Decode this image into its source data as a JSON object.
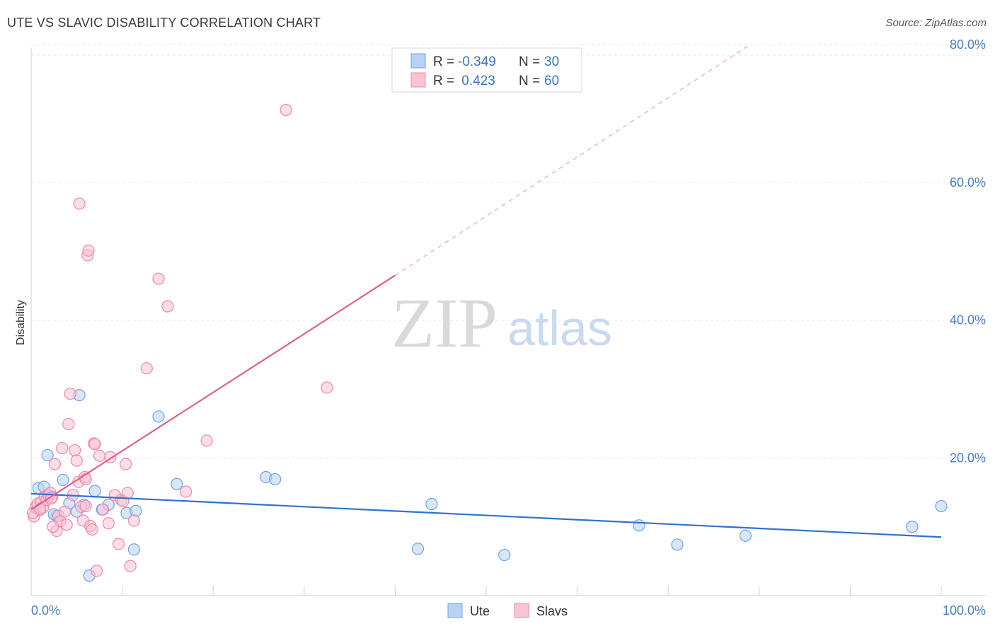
{
  "title": "UTE VS SLAVIC DISABILITY CORRELATION CHART",
  "source": "Source: ZipAtlas.com",
  "chart_data": {
    "type": "scatter",
    "ylabel": "Disability",
    "xlabel": "",
    "xlim": [
      0,
      100
    ],
    "ylim": [
      0,
      80
    ],
    "x_tick_labels": [
      "0.0%",
      "100.0%"
    ],
    "y_tick_labels": [
      "20.0%",
      "40.0%",
      "60.0%",
      "80.0%"
    ],
    "y_ticks": [
      20,
      40,
      60,
      80
    ],
    "grid": true,
    "legend_placement": "top-center",
    "watermark": {
      "zip": "ZIP",
      "atlas": "atlas"
    },
    "legend": [
      {
        "r_label": "R =",
        "r_value": "-0.349",
        "n_label": "N =",
        "n_value": "30",
        "color": "#a9c8f0"
      },
      {
        "r_label": "R =",
        "r_value": " 0.423",
        "n_label": "N =",
        "n_value": "60",
        "color": "#f6b8cc"
      }
    ],
    "series": [
      {
        "name": "Ute",
        "color": "#6fa3e6",
        "fill": "#b8d2f3",
        "trend": {
          "x0": 0,
          "y0": 14.8,
          "x1": 100,
          "y1": 8.5,
          "color": "#2f72d0"
        },
        "points": [
          [
            0.8,
            15.6
          ],
          [
            1.4,
            15.8
          ],
          [
            1.8,
            20.4
          ],
          [
            2.0,
            14.5
          ],
          [
            2.8,
            11.6
          ],
          [
            3.5,
            16.8
          ],
          [
            4.2,
            13.4
          ],
          [
            5.0,
            12.2
          ],
          [
            5.3,
            29.1
          ],
          [
            5.8,
            13.2
          ],
          [
            6.4,
            2.9
          ],
          [
            7.0,
            15.2
          ],
          [
            7.8,
            12.5
          ],
          [
            8.5,
            13.2
          ],
          [
            10.5,
            12.0
          ],
          [
            11.5,
            12.3
          ],
          [
            11.3,
            6.7
          ],
          [
            14.0,
            26.0
          ],
          [
            16.0,
            16.2
          ],
          [
            25.8,
            17.2
          ],
          [
            26.8,
            16.9
          ],
          [
            42.5,
            6.8
          ],
          [
            44.0,
            13.3
          ],
          [
            52.0,
            5.9
          ],
          [
            66.8,
            10.2
          ],
          [
            71.0,
            7.4
          ],
          [
            78.5,
            8.7
          ],
          [
            96.8,
            10.0
          ],
          [
            100.0,
            13.0
          ],
          [
            2.5,
            11.8
          ]
        ]
      },
      {
        "name": "Slavs",
        "color": "#ee88a8",
        "fill": "#f8c3d3",
        "trend": {
          "x0": 0,
          "y0": 12.5,
          "x1": 40,
          "y1": 46.5,
          "x_dash_end": 79,
          "y_dash_end": 80,
          "color": "#e0608a"
        },
        "points": [
          [
            0.3,
            11.5
          ],
          [
            0.5,
            12.8
          ],
          [
            0.7,
            13.3
          ],
          [
            0.9,
            12.4
          ],
          [
            1.1,
            13.6
          ],
          [
            1.3,
            12.8
          ],
          [
            1.5,
            14.4
          ],
          [
            1.7,
            13.9
          ],
          [
            1.9,
            14.6
          ],
          [
            2.1,
            14.9
          ],
          [
            2.3,
            14.3
          ],
          [
            2.6,
            19.1
          ],
          [
            2.8,
            9.4
          ],
          [
            3.0,
            11.6
          ],
          [
            3.2,
            10.8
          ],
          [
            3.4,
            21.4
          ],
          [
            3.7,
            12.2
          ],
          [
            3.9,
            10.3
          ],
          [
            4.1,
            24.9
          ],
          [
            4.3,
            29.3
          ],
          [
            4.6,
            14.6
          ],
          [
            4.8,
            21.1
          ],
          [
            5.0,
            19.6
          ],
          [
            5.2,
            16.5
          ],
          [
            5.3,
            56.9
          ],
          [
            5.5,
            12.9
          ],
          [
            5.7,
            10.9
          ],
          [
            5.9,
            17.2
          ],
          [
            6.0,
            16.9
          ],
          [
            6.2,
            49.4
          ],
          [
            6.3,
            50.1
          ],
          [
            6.5,
            10.1
          ],
          [
            6.7,
            9.6
          ],
          [
            6.9,
            22.1
          ],
          [
            7.0,
            22.0
          ],
          [
            7.2,
            3.6
          ],
          [
            7.5,
            20.3
          ],
          [
            7.9,
            12.5
          ],
          [
            8.5,
            10.5
          ],
          [
            8.7,
            20.1
          ],
          [
            9.2,
            14.6
          ],
          [
            9.6,
            7.5
          ],
          [
            9.9,
            13.9
          ],
          [
            10.1,
            13.7
          ],
          [
            10.4,
            19.1
          ],
          [
            10.6,
            14.9
          ],
          [
            10.9,
            4.3
          ],
          [
            11.3,
            10.9
          ],
          [
            12.7,
            33.0
          ],
          [
            14.0,
            46.0
          ],
          [
            15.0,
            42.0
          ],
          [
            17.0,
            15.1
          ],
          [
            19.3,
            22.5
          ],
          [
            28.0,
            70.5
          ],
          [
            32.5,
            30.2
          ],
          [
            2.2,
            14.1
          ],
          [
            0.2,
            12.0
          ],
          [
            1.0,
            12.6
          ],
          [
            2.4,
            10.0
          ],
          [
            6.0,
            13.0
          ]
        ]
      }
    ]
  }
}
